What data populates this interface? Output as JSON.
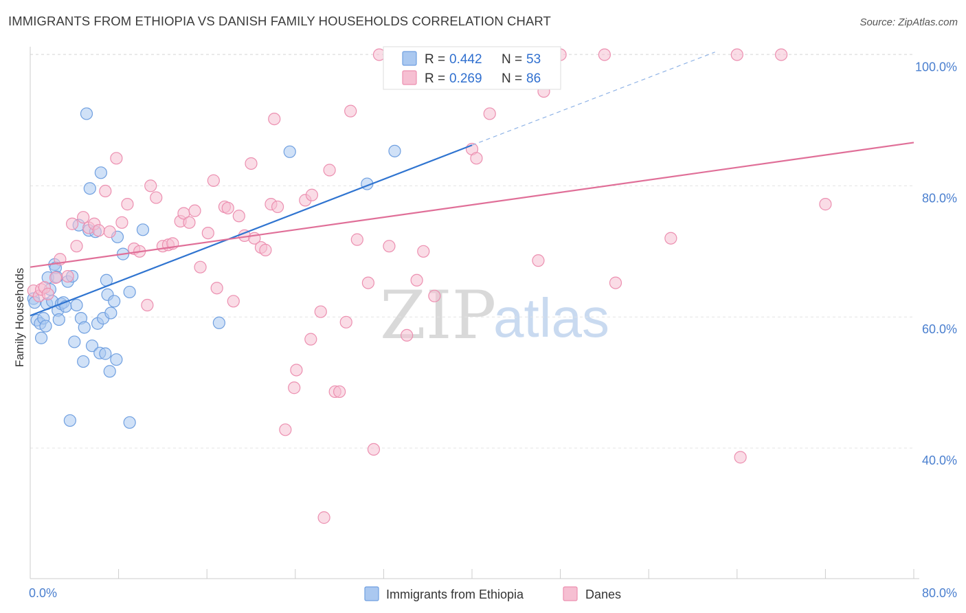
{
  "header": {
    "title": "IMMIGRANTS FROM ETHIOPIA VS DANISH FAMILY HOUSEHOLDS CORRELATION CHART",
    "source": "Source: ZipAtlas.com"
  },
  "watermark": {
    "part1": "ZIP",
    "part2": "atlas"
  },
  "legend": {
    "rows": [
      {
        "r_label": "R =",
        "r_value": "0.442",
        "n_label": "N =",
        "n_value": "53"
      },
      {
        "r_label": "R =",
        "r_value": "0.269",
        "n_label": "N =",
        "n_value": "86"
      }
    ]
  },
  "chart_data": {
    "type": "scatter",
    "title": "IMMIGRANTS FROM ETHIOPIA VS DANISH FAMILY HOUSEHOLDS CORRELATION CHART",
    "xlabel": "",
    "ylabel": "Family Households",
    "xlim": [
      0,
      80
    ],
    "ylim": [
      20,
      103
    ],
    "x_tick_labels": [
      "0.0%",
      "80.0%"
    ],
    "y_ticks": [
      40,
      60,
      80,
      100
    ],
    "y_tick_labels": [
      "40.0%",
      "60.0%",
      "80.0%",
      "100.0%"
    ],
    "grid": true,
    "legend_placement": "top-center",
    "series": [
      {
        "name": "Immigrants from Ethiopia",
        "color": "#6f9fe0",
        "fill": "#aac8f0",
        "r": 0.442,
        "n": 53,
        "trend": {
          "x0": 0,
          "y0": 60.2,
          "x1": 40,
          "y1": 86.2,
          "dash_to_x": 62,
          "dash_to_y": 100.4
        },
        "points": [
          [
            0.3,
            62.8
          ],
          [
            0.4,
            62.2
          ],
          [
            0.6,
            59.5
          ],
          [
            0.9,
            59.0
          ],
          [
            1.0,
            56.8
          ],
          [
            1.2,
            59.8
          ],
          [
            1.4,
            58.6
          ],
          [
            1.5,
            62.0
          ],
          [
            1.8,
            64.2
          ],
          [
            2.0,
            62.4
          ],
          [
            2.2,
            68.0
          ],
          [
            2.3,
            67.5
          ],
          [
            2.5,
            61.0
          ],
          [
            2.6,
            59.6
          ],
          [
            2.8,
            62.0
          ],
          [
            3.0,
            62.2
          ],
          [
            3.2,
            61.6
          ],
          [
            3.4,
            65.4
          ],
          [
            3.8,
            66.2
          ],
          [
            4.0,
            56.2
          ],
          [
            4.2,
            61.8
          ],
          [
            4.4,
            74.0
          ],
          [
            4.6,
            59.8
          ],
          [
            4.8,
            53.2
          ],
          [
            4.9,
            58.4
          ],
          [
            5.1,
            91.0
          ],
          [
            5.3,
            73.2
          ],
          [
            5.4,
            79.6
          ],
          [
            5.6,
            55.6
          ],
          [
            5.9,
            73.0
          ],
          [
            6.1,
            59.0
          ],
          [
            6.3,
            54.5
          ],
          [
            6.4,
            82.0
          ],
          [
            6.6,
            59.8
          ],
          [
            6.8,
            54.4
          ],
          [
            6.9,
            65.6
          ],
          [
            7.0,
            63.4
          ],
          [
            7.2,
            51.7
          ],
          [
            7.3,
            60.6
          ],
          [
            7.6,
            62.4
          ],
          [
            7.8,
            53.5
          ],
          [
            7.9,
            72.2
          ],
          [
            8.4,
            69.6
          ],
          [
            9.0,
            63.8
          ],
          [
            10.2,
            73.3
          ],
          [
            17.1,
            59.1
          ],
          [
            23.5,
            85.2
          ],
          [
            30.5,
            80.3
          ],
          [
            33.0,
            85.3
          ],
          [
            3.6,
            44.2
          ],
          [
            9.0,
            43.9
          ],
          [
            1.6,
            66.0
          ],
          [
            2.4,
            66.1
          ]
        ]
      },
      {
        "name": "Danes",
        "color": "#ec8fb0",
        "fill": "#f6bfd2",
        "r": 0.269,
        "n": 86,
        "trend": {
          "x0": 0,
          "y0": 67.6,
          "x1": 80,
          "y1": 86.6
        },
        "points": [
          [
            0.3,
            64.0
          ],
          [
            0.8,
            63.2
          ],
          [
            1.0,
            64.2
          ],
          [
            1.3,
            64.5
          ],
          [
            1.6,
            63.5
          ],
          [
            2.3,
            66.0
          ],
          [
            2.7,
            68.8
          ],
          [
            3.4,
            66.2
          ],
          [
            3.8,
            74.2
          ],
          [
            4.2,
            70.8
          ],
          [
            4.8,
            75.2
          ],
          [
            5.3,
            73.6
          ],
          [
            5.8,
            74.2
          ],
          [
            6.2,
            73.2
          ],
          [
            6.8,
            79.2
          ],
          [
            7.2,
            73.0
          ],
          [
            7.8,
            84.2
          ],
          [
            8.3,
            74.4
          ],
          [
            8.8,
            77.2
          ],
          [
            9.4,
            70.4
          ],
          [
            9.9,
            70.0
          ],
          [
            10.6,
            61.8
          ],
          [
            10.9,
            80.0
          ],
          [
            11.4,
            78.2
          ],
          [
            12.0,
            70.8
          ],
          [
            12.5,
            71.0
          ],
          [
            12.9,
            71.2
          ],
          [
            13.6,
            74.6
          ],
          [
            13.9,
            75.8
          ],
          [
            14.4,
            74.4
          ],
          [
            14.9,
            76.2
          ],
          [
            15.4,
            67.6
          ],
          [
            16.1,
            72.8
          ],
          [
            16.6,
            80.8
          ],
          [
            16.9,
            64.4
          ],
          [
            17.6,
            76.8
          ],
          [
            17.9,
            76.6
          ],
          [
            18.4,
            62.4
          ],
          [
            18.9,
            75.4
          ],
          [
            19.4,
            72.4
          ],
          [
            20.0,
            83.4
          ],
          [
            20.3,
            72.0
          ],
          [
            20.9,
            70.6
          ],
          [
            21.3,
            70.2
          ],
          [
            21.8,
            77.2
          ],
          [
            22.4,
            76.8
          ],
          [
            22.1,
            90.2
          ],
          [
            23.1,
            42.8
          ],
          [
            23.9,
            49.2
          ],
          [
            24.1,
            51.9
          ],
          [
            24.9,
            77.8
          ],
          [
            25.4,
            56.6
          ],
          [
            25.5,
            78.6
          ],
          [
            26.3,
            60.8
          ],
          [
            26.6,
            29.4
          ],
          [
            27.1,
            82.4
          ],
          [
            27.6,
            48.6
          ],
          [
            28.0,
            48.6
          ],
          [
            28.6,
            59.2
          ],
          [
            29.0,
            91.4
          ],
          [
            29.6,
            71.8
          ],
          [
            30.6,
            65.2
          ],
          [
            31.1,
            39.8
          ],
          [
            31.6,
            100.0
          ],
          [
            32.5,
            70.8
          ],
          [
            34.1,
            57.2
          ],
          [
            35.0,
            65.6
          ],
          [
            35.6,
            70.0
          ],
          [
            36.6,
            63.2
          ],
          [
            38.0,
            99.6
          ],
          [
            39.0,
            95.8
          ],
          [
            40.0,
            85.6
          ],
          [
            40.4,
            84.2
          ],
          [
            41.6,
            91.0
          ],
          [
            43.8,
            99.8
          ],
          [
            44.7,
            100.0
          ],
          [
            46.0,
            68.6
          ],
          [
            46.5,
            94.4
          ],
          [
            48.0,
            100.0
          ],
          [
            52.0,
            100.0
          ],
          [
            53.0,
            65.2
          ],
          [
            58.0,
            72.0
          ],
          [
            64.0,
            100.0
          ],
          [
            64.3,
            38.6
          ],
          [
            68.0,
            100.0
          ],
          [
            72.0,
            77.2
          ]
        ]
      }
    ]
  }
}
